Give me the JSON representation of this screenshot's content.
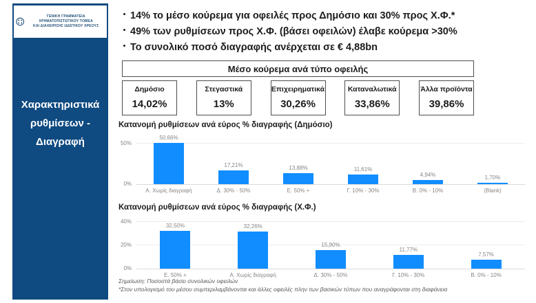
{
  "slide": {
    "logo": {
      "line1": "ΓΕΝΙΚΗ ΓΡΑΜΜΑΤΕΙΑ ΧΡΗΜΑΤΟΠΙΣΤΩΤΙΚΟΥ ΤΟΜΕΑ",
      "line2": "ΚΑΙ ΔΙΑΧΕΙΡΙΣΗΣ ΙΔΙΩΤΙΚΟΥ ΧΡΕΟΥΣ"
    },
    "sidebar_title": "Χαρακτηριστικά ρυθμίσεων - Διαγραφή",
    "bullets": [
      "14% το μέσο κούρεμα για οφειλές προς Δημόσιο και 30% προς Χ.Φ.*",
      "49% των ρυθμίσεων προς Χ.Φ. (βάσει οφειλών) έλαβε κούρεμα >30%",
      "Το συνολικό ποσό διαγραφής ανέρχεται σε €  4,88bn"
    ],
    "table": {
      "title": "Μέσο κούρεμα ανά τύπο οφειλής",
      "columns": [
        {
          "label": "Δημόσιο",
          "value": "14,02%"
        },
        {
          "label": "Στεγαστικά",
          "value": "13%"
        },
        {
          "label": "Επιχειρηματικά",
          "value": "30,26%"
        },
        {
          "label": "Καταναλωτικά",
          "value": "33,86%"
        },
        {
          "label": "Άλλα προϊόντα",
          "value": "39,86%"
        }
      ]
    },
    "notes": [
      "Σημείωση: Ποσοστά βάσει συνολικών οφειλών",
      "*Στον υπολογισμό του μέσου συμπεριλαμβάνονται και άλλες οφειλές πλην των βασικών τύπων που αναγράφονται στη διαφάνεια"
    ],
    "colors": {
      "sidebar_blue": "#0F4A80",
      "bar_blue": "#118DFF",
      "label_gray": "#858585",
      "border_gray": "#4d4d4d"
    }
  },
  "chart_data": [
    {
      "type": "bar",
      "title": "Κατανομή ρυθμίσεων ανά εύρος % διαγραφής (Δημόσιο)",
      "categories": [
        "Α. Χωρίς διαγραφή",
        "Δ. 30% - 50%",
        "Ε. 50% +",
        "Γ. 10% - 30%",
        "Β. 0% - 10%",
        "(Blank)"
      ],
      "values": [
        50.66,
        17.21,
        13.88,
        11.61,
        4.94,
        1.7
      ],
      "value_labels": [
        "50,66%",
        "17,21%",
        "13,88%",
        "11,61%",
        "4,94%",
        "1,70%"
      ],
      "ylim": [
        0,
        62
      ],
      "yticks": [
        {
          "value": 50,
          "label": "50%"
        },
        {
          "value": 0,
          "label": "0%"
        }
      ],
      "grid": true,
      "legend": "none",
      "bar_color": "#118DFF"
    },
    {
      "type": "bar",
      "title": "Κατανομή ρυθμίσεων ανά εύρος % διαγραφής (Χ.Φ.)",
      "categories": [
        "Ε. 50% +",
        "Α. Χωρίς διαγραφή",
        "Δ. 30% - 50%",
        "Γ. 10% - 30%",
        "Β. 0% - 10%"
      ],
      "values": [
        32.5,
        32.26,
        15.9,
        11.77,
        7.57
      ],
      "value_labels": [
        "32,50%",
        "32,26%",
        "15,90%",
        "11,77%",
        "7,57%"
      ],
      "ylim": [
        0,
        45
      ],
      "yticks": [
        {
          "value": 40,
          "label": "40%"
        },
        {
          "value": 20,
          "label": "20%"
        },
        {
          "value": 0,
          "label": "0%"
        }
      ],
      "grid": true,
      "legend": "none",
      "bar_color": "#118DFF"
    }
  ]
}
